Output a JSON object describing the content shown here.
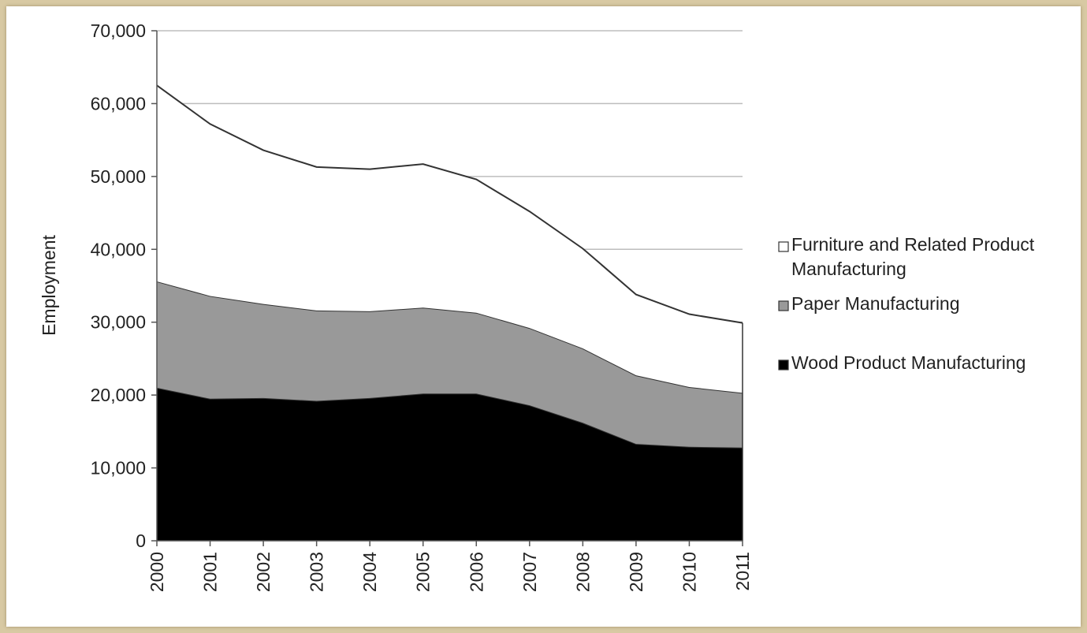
{
  "chart_data": {
    "type": "area",
    "stacked": true,
    "title": "",
    "xlabel": "",
    "ylabel": "Employment",
    "ylim": [
      0,
      70000
    ],
    "yticks": [
      0,
      10000,
      20000,
      30000,
      40000,
      50000,
      60000,
      70000
    ],
    "ytick_labels": [
      "0",
      "10,000",
      "20,000",
      "30,000",
      "40,000",
      "50,000",
      "60,000",
      "70,000"
    ],
    "grid": true,
    "legend_position": "right",
    "categories": [
      "2000",
      "2001",
      "2002",
      "2003",
      "2004",
      "2005",
      "2006",
      "2007",
      "2008",
      "2009",
      "2010",
      "2011"
    ],
    "series": [
      {
        "name": "Wood Product Manufacturing",
        "color": "#000000",
        "values": [
          21000,
          19500,
          19600,
          19200,
          19600,
          20200,
          20200,
          18600,
          16200,
          13300,
          12900,
          12800
        ]
      },
      {
        "name": "Paper Manufacturing",
        "color": "#999999",
        "values": [
          14600,
          14100,
          12900,
          12400,
          11900,
          11800,
          11100,
          10600,
          10200,
          9400,
          8200,
          7500
        ]
      },
      {
        "name": "Furniture and Related Product Manufacturing",
        "legend_lines": [
          "Furniture and Related Product",
          "Manufacturing"
        ],
        "color": "#ffffff",
        "values": [
          26900,
          23600,
          21100,
          19700,
          19500,
          19700,
          18300,
          16000,
          13700,
          11100,
          10000,
          9600
        ]
      }
    ]
  }
}
